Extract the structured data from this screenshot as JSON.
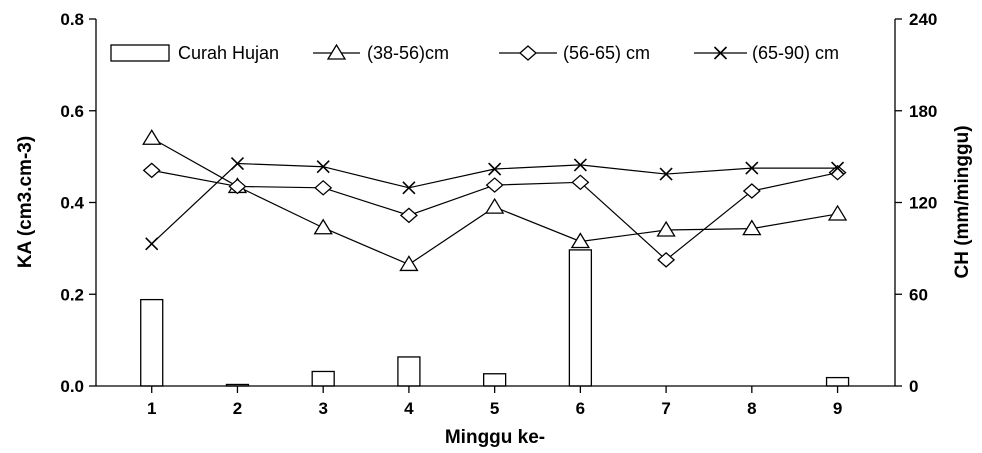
{
  "chart_data": {
    "type": "bar+line",
    "title": "",
    "xlabel": "Minggu ke-",
    "ylabel_left": "KA (cm3.cm-3)",
    "ylabel_right": "CH (mm/minggu)",
    "x": [
      1,
      2,
      3,
      4,
      5,
      6,
      7,
      8,
      9
    ],
    "x_tick_labels": [
      "1",
      "2",
      "3",
      "4",
      "5",
      "6",
      "7",
      "8",
      "9"
    ],
    "ylim_left": [
      0,
      0.8
    ],
    "ylim_right": [
      0,
      240
    ],
    "y_left_ticks": [
      0,
      0.2,
      0.4,
      0.6,
      0.8
    ],
    "y_left_tick_labels": [
      "0.0",
      "0.2",
      "0.4",
      "0.6",
      "0.8"
    ],
    "y_right_ticks": [
      0,
      60,
      120,
      180,
      240
    ],
    "y_right_tick_labels": [
      "0",
      "60",
      "120",
      "180",
      "240"
    ],
    "grid": false,
    "legend_position": "top",
    "bars": {
      "name": "Curah Hujan",
      "axis": "right",
      "values": [
        56.5,
        1,
        9.5,
        19,
        8,
        89,
        0,
        0,
        5.5
      ]
    },
    "series": [
      {
        "name": "(38-56)cm",
        "marker": "triangle",
        "axis": "left",
        "values": [
          0.54,
          0.435,
          0.345,
          0.265,
          0.39,
          0.315,
          0.34,
          0.343,
          0.375
        ]
      },
      {
        "name": "(56-65) cm",
        "marker": "diamond",
        "axis": "left",
        "values": [
          0.47,
          0.435,
          0.432,
          0.372,
          0.438,
          0.444,
          0.275,
          0.425,
          0.465
        ]
      },
      {
        "name": "(65-90) cm",
        "marker": "x",
        "axis": "left",
        "values": [
          0.31,
          0.485,
          0.478,
          0.432,
          0.473,
          0.482,
          0.462,
          0.475,
          0.475
        ]
      }
    ]
  }
}
